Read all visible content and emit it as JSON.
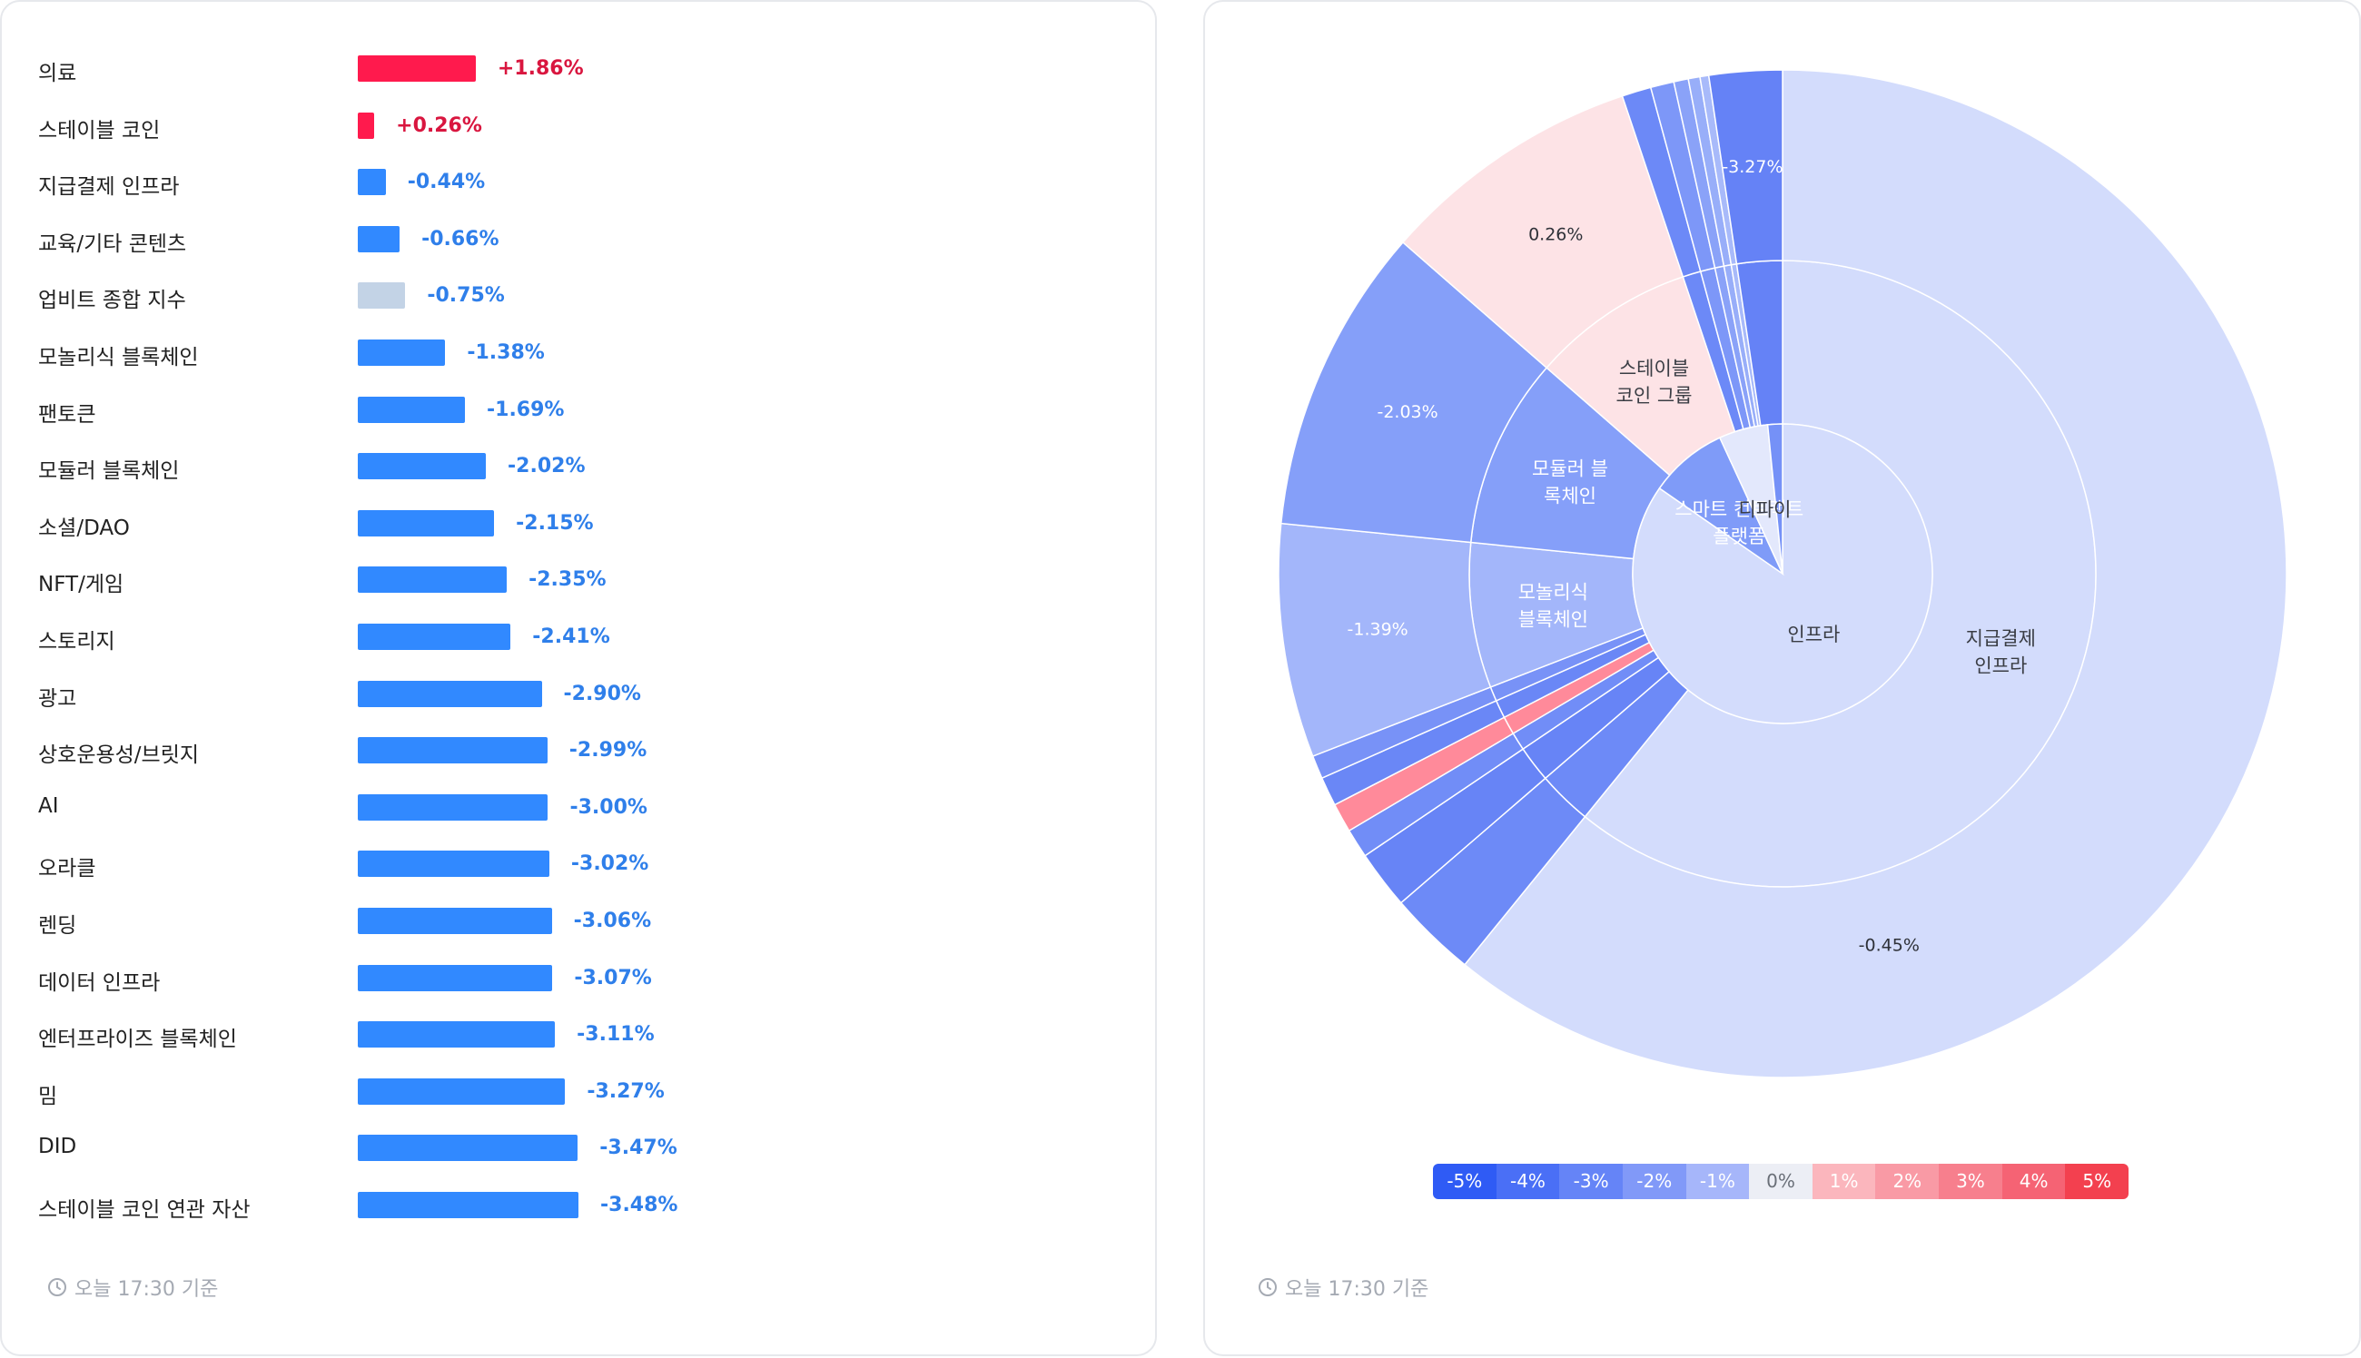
{
  "bar_panel": {
    "footer_text": "오늘 17:30 기준",
    "max_abs": 3.48
  },
  "pie_panel": {
    "footer_text": "오늘 17:30 기준"
  },
  "colors": {
    "positive": "#ff1a4d",
    "negative": "#3189ff",
    "index": "#c3d3e6",
    "pos_text": "#d9163f",
    "neg_text": "#2f7fea"
  },
  "chart_data": [
    {
      "type": "bar",
      "orientation": "horizontal",
      "categories": [
        "의료",
        "스테이블 코인",
        "지급결제 인프라",
        "교육/기타 콘텐츠",
        "업비트 종합 지수",
        "모놀리식 블록체인",
        "팬토큰",
        "모듈러 블록체인",
        "소셜/DAO",
        "NFT/게임",
        "스토리지",
        "광고",
        "상호운용성/브릿지",
        "AI",
        "오라클",
        "렌딩",
        "데이터 인프라",
        "엔터프라이즈 블록체인",
        "밈",
        "DID",
        "스테이블 코인 연관 자산"
      ],
      "values": [
        1.86,
        0.26,
        -0.44,
        -0.66,
        -0.75,
        -1.38,
        -1.69,
        -2.02,
        -2.15,
        -2.35,
        -2.41,
        -2.9,
        -2.99,
        -3.0,
        -3.02,
        -3.06,
        -3.07,
        -3.11,
        -3.27,
        -3.47,
        -3.48
      ],
      "labels": [
        "+1.86%",
        "+0.26%",
        "-0.44%",
        "-0.66%",
        "-0.75%",
        "-1.38%",
        "-1.69%",
        "-2.02%",
        "-2.15%",
        "-2.35%",
        "-2.41%",
        "-2.90%",
        "-2.99%",
        "-3.00%",
        "-3.02%",
        "-3.06%",
        "-3.07%",
        "-3.11%",
        "-3.27%",
        "-3.47%",
        "-3.48%"
      ],
      "highlight_index": 4
    },
    {
      "type": "sunburst",
      "inner": [
        {
          "label": "인프라",
          "weight": 80,
          "color": "#d3dcfc"
        },
        {
          "label": "스마트 컨트랙트\n플랫폼",
          "weight": 8,
          "color": "#7f9bf8"
        },
        {
          "label": "디파이",
          "weight": 5,
          "color": "#e3e8fc"
        },
        {
          "label": "",
          "weight": 1.5,
          "color": "#7591f7"
        }
      ],
      "middle": [
        {
          "label": "지급결제\n인프라",
          "weight": 65,
          "color": "#d3dcfc"
        },
        {
          "label": "",
          "weight": 3,
          "color": "#6d8af7"
        },
        {
          "label": "",
          "weight": 2,
          "color": "#6784f6"
        },
        {
          "label": "",
          "weight": 1,
          "color": "#718df7"
        },
        {
          "label": "",
          "weight": 1,
          "color": "#ff8a9a"
        },
        {
          "label": "",
          "weight": 1,
          "color": "#6a87f6"
        },
        {
          "label": "",
          "weight": 0.8,
          "color": "#7892f7"
        },
        {
          "label": "모놀리식\n블록체인",
          "weight": 8,
          "color": "#a3b6fa"
        },
        {
          "label": "모듈러 블\n록체인",
          "weight": 10.5,
          "color": "#859ff9"
        },
        {
          "label": "스테이블\n코인 그룹",
          "weight": 9,
          "color": "#fde3e6"
        },
        {
          "label": "",
          "weight": 1,
          "color": "#6c89f7"
        },
        {
          "label": "",
          "weight": 0.8,
          "color": "#7d97f8"
        },
        {
          "label": "",
          "weight": 0.5,
          "color": "#8aa2f8"
        },
        {
          "label": "",
          "weight": 0.4,
          "color": "#98aef9"
        },
        {
          "label": "",
          "weight": 0.3,
          "color": "#a8bafa"
        },
        {
          "label": "",
          "weight": 2.5,
          "color": "#6582f6"
        }
      ],
      "outer_labels": [
        "-0.45%",
        "-1.39%",
        "-2.03%",
        "0.26%",
        "-3.27%"
      ]
    }
  ],
  "legend": {
    "labels": [
      "-5%",
      "-4%",
      "-3%",
      "-2%",
      "-1%",
      "0%",
      "1%",
      "2%",
      "3%",
      "4%",
      "5%"
    ],
    "colors": [
      "#2f5bf5",
      "#4a6ff6",
      "#6584f7",
      "#8199f8",
      "#a6b6fa",
      "#eceef5",
      "#fbb6bd",
      "#f99aa5",
      "#f77f8d",
      "#f56374",
      "#f3404f"
    ],
    "text_colors": [
      "#fff",
      "#fff",
      "#fff",
      "#fff",
      "#fff",
      "#6a6f78",
      "#fff",
      "#fff",
      "#fff",
      "#fff",
      "#fff"
    ]
  }
}
